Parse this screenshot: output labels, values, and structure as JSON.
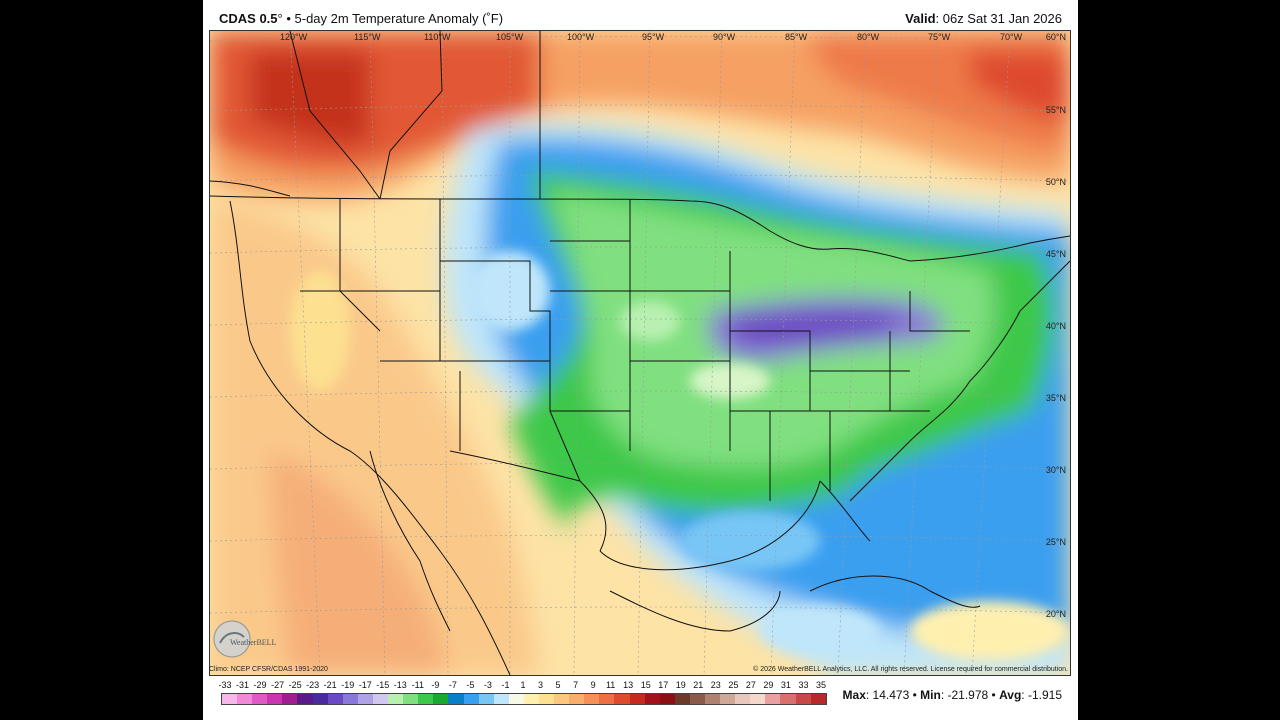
{
  "header": {
    "model": "CDAS 0.5",
    "degree": "°",
    "bullet": " • ",
    "product": "5-day 2m Temperature Anomaly (˚F)",
    "valid_label": "Valid",
    "valid_value": ": 06z Sat 31 Jan 2026"
  },
  "map": {
    "lon_labels": [
      "120°W",
      "115°W",
      "110°W",
      "105°W",
      "100°W",
      "95°W",
      "90°W",
      "85°W",
      "80°W",
      "75°W",
      "70°W"
    ],
    "lat_labels": [
      "60°N",
      "55°N",
      "50°N",
      "45°N",
      "40°N",
      "35°N",
      "30°N",
      "25°N",
      "20°N"
    ],
    "logo_text": "WeatherBELL"
  },
  "credits": {
    "left": "Climo: NCEP CFSR/CDAS 1991-2020",
    "right": "© 2026 WeatherBELL Analytics, LLC. All rights reserved. License required for commercial distribution."
  },
  "colorbar": {
    "labels": [
      "-33",
      "-31",
      "-29",
      "-27",
      "-25",
      "-23",
      "-21",
      "-19",
      "-17",
      "-15",
      "-13",
      "-11",
      "-9",
      "-7",
      "-5",
      "-3",
      "-1",
      "1",
      "3",
      "5",
      "7",
      "9",
      "11",
      "13",
      "15",
      "17",
      "19",
      "21",
      "23",
      "25",
      "27",
      "29",
      "31",
      "33",
      "35"
    ],
    "colors": [
      "#f9b6e8",
      "#f08ad8",
      "#e05ac6",
      "#c936b0",
      "#a01e90",
      "#5a1a8a",
      "#4a2a9c",
      "#6a4ac2",
      "#8c78d8",
      "#b0a2e6",
      "#d0c8f0",
      "#b8f0b0",
      "#80e080",
      "#3cc84a",
      "#1aa830",
      "#0a7fc8",
      "#3a9ff0",
      "#78c6f5",
      "#bfe6fa",
      "#f5f9e6",
      "#fff0b0",
      "#fde090",
      "#fcc880",
      "#f9ae6c",
      "#f59058",
      "#ef6e44",
      "#de4a2e",
      "#c42a1e",
      "#a3121a",
      "#8a1014",
      "#6c3a28",
      "#8c5a4a",
      "#b08070",
      "#d0a898",
      "#e8c8bc",
      "#f4d8cc",
      "#e8a0a0",
      "#d87070",
      "#c84848",
      "#b82a2a"
    ]
  },
  "stats": {
    "max_label": "Max",
    "max_value": ": 14.473",
    "min_label": "Min",
    "min_value": ": -21.978",
    "avg_label": "Avg",
    "avg_value": ": -1.915",
    "sep": " • "
  }
}
